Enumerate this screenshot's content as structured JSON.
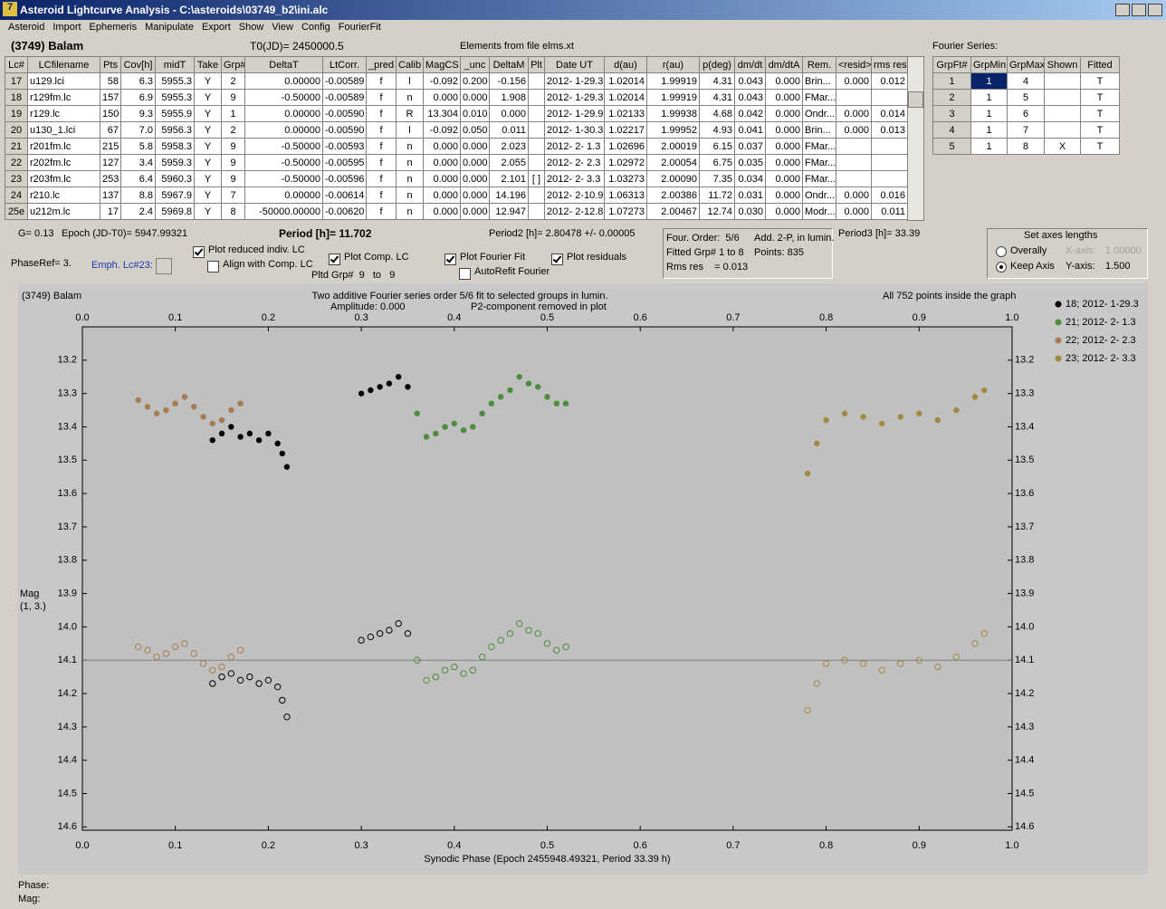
{
  "window": {
    "title": "Asteroid Lightcurve Analysis - C:\\asteroids\\03749_b2\\ini.alc",
    "menu": [
      "Asteroid",
      "Import",
      "Ephemeris",
      "Manipulate",
      "Export",
      "Show",
      "View",
      "Config",
      "FourierFit"
    ]
  },
  "header": {
    "object": "(3749) Balam",
    "t0": "T0(JD)= 2450000.5",
    "elements": "Elements from file elms.xt"
  },
  "table": {
    "columns": [
      "Lc#",
      "LCfilename",
      "Pts",
      "Cov[h]",
      "midT",
      "Take",
      "Grp#",
      "DeltaT",
      "LtCorr.",
      "_pred",
      "Calib",
      "MagCS",
      "_unc",
      "DeltaM",
      "Plt",
      "Date UT",
      "d(au)",
      "r(au)",
      "p(deg)",
      "dm/dt",
      "dm/dtA",
      "Rem.",
      "<resid>",
      "rms res"
    ],
    "rows": [
      [
        "17",
        "u129.lci",
        "58",
        "6.3",
        "5955.3",
        "Y",
        "2",
        "0.00000",
        "-0.00589",
        "f",
        "l",
        "-0.092",
        "0.200",
        "-0.156",
        null,
        "2012- 1-29.3",
        "1.02014",
        "1.99919",
        "4.31",
        "0.043",
        "0.000",
        "Brin...",
        "0.000",
        "0.012"
      ],
      [
        "18",
        "r129fm.lc",
        "157",
        "6.9",
        "5955.3",
        "Y",
        "9",
        "-0.50000",
        "-0.00589",
        "f",
        "n",
        "0.000",
        "0.000",
        "1.908",
        null,
        "2012- 1-29.3",
        "1.02014",
        "1.99919",
        "4.31",
        "0.043",
        "0.000",
        "FMar...",
        null,
        null
      ],
      [
        "19",
        "r129.lc",
        "150",
        "9.3",
        "5955.9",
        "Y",
        "1",
        "0.00000",
        "-0.00590",
        "f",
        "R",
        "13.304",
        "0.010",
        "0.000",
        null,
        "2012- 1-29.9",
        "1.02133",
        "1.99938",
        "4.68",
        "0.042",
        "0.000",
        "Ondr...",
        "0.000",
        "0.014"
      ],
      [
        "20",
        "u130_1.lci",
        "67",
        "7.0",
        "5956.3",
        "Y",
        "2",
        "0.00000",
        "-0.00590",
        "f",
        "l",
        "-0.092",
        "0.050",
        "0.011",
        null,
        "2012- 1-30.3",
        "1.02217",
        "1.99952",
        "4.93",
        "0.041",
        "0.000",
        "Brin...",
        "0.000",
        "0.013"
      ],
      [
        "21",
        "r201fm.lc",
        "215",
        "5.8",
        "5958.3",
        "Y",
        "9",
        "-0.50000",
        "-0.00593",
        "f",
        "n",
        "0.000",
        "0.000",
        "2.023",
        null,
        "2012- 2- 1.3",
        "1.02696",
        "2.00019",
        "6.15",
        "0.037",
        "0.000",
        "FMar...",
        null,
        null
      ],
      [
        "22",
        "r202fm.lc",
        "127",
        "3.4",
        "5959.3",
        "Y",
        "9",
        "-0.50000",
        "-0.00595",
        "f",
        "n",
        "0.000",
        "0.000",
        "2.055",
        null,
        "2012- 2- 2.3",
        "1.02972",
        "2.00054",
        "6.75",
        "0.035",
        "0.000",
        "FMar...",
        null,
        null
      ],
      [
        "23",
        "r203fm.lc",
        "253",
        "6.4",
        "5960.3",
        "Y",
        "9",
        "-0.50000",
        "-0.00596",
        "f",
        "n",
        "0.000",
        "0.000",
        "2.101",
        "[ ]",
        "2012- 2- 3.3",
        "1.03273",
        "2.00090",
        "7.35",
        "0.034",
        "0.000",
        "FMar...",
        null,
        null
      ],
      [
        "24",
        "r210.lc",
        "137",
        "8.8",
        "5967.9",
        "Y",
        "7",
        "0.00000",
        "-0.00614",
        "f",
        "n",
        "0.000",
        "0.000",
        "14.196",
        null,
        "2012- 2-10.9",
        "1.06313",
        "2.00386",
        "11.72",
        "0.031",
        "0.000",
        "Ondr...",
        "0.000",
        "0.016"
      ],
      [
        "25e",
        "u212m.lc",
        "17",
        "2.4",
        "5969.8",
        "Y",
        "8",
        "-50000.00000",
        "-0.00620",
        "f",
        "n",
        "0.000",
        "0.000",
        "12.947",
        null,
        "2012- 2-12.8",
        "1.07273",
        "2.00467",
        "12.74",
        "0.030",
        "0.000",
        "Modr...",
        "0.000",
        "0.011"
      ]
    ]
  },
  "fourier": {
    "label": "Fourier Series:",
    "columns": [
      "GrpFt#",
      "GrpMin",
      "GrpMax",
      "Shown",
      "Fitted"
    ],
    "rows": [
      [
        "1",
        "1",
        "4",
        null,
        "T"
      ],
      [
        "2",
        "1",
        "5",
        null,
        "T"
      ],
      [
        "3",
        "1",
        "6",
        null,
        "T"
      ],
      [
        "4",
        "1",
        "7",
        null,
        "T"
      ],
      [
        "5",
        "1",
        "8",
        "X",
        "T"
      ]
    ]
  },
  "info": {
    "g": "G= 0.13",
    "epoch": "Epoch (JD-T0)= 5947.99321",
    "period": "Period [h]= 11.702",
    "period2": "Period2 [h]= 2.80478 +/- 0.00005",
    "period3": "Period3 [h]= 33.39",
    "phase_ref": "PhaseRef= 3.",
    "emph": "Emph. Lc#23:"
  },
  "fit_box": {
    "order": "Four. Order:  5/6",
    "add": "Add. 2-P, in lumin.",
    "fitted": "Fitted Grp# 1 to 8",
    "points": "Points: 835",
    "rms": "Rms res    = 0.013"
  },
  "options": {
    "plot_reduced": {
      "label": "Plot reduced indiv. LC",
      "checked": true
    },
    "align": {
      "label": "Align with Comp. LC",
      "checked": false
    },
    "plot_comp": {
      "label": "Plot Comp. LC",
      "checked": true
    },
    "plot_fourier": {
      "label": "Plot Fourier Fit",
      "checked": true
    },
    "autorefit": {
      "label": "AutoRefit Fourier",
      "checked": false
    },
    "plot_residuals": {
      "label": "Plot residuals",
      "checked": true
    },
    "pltd": "Pltd Grp#  9   to   9"
  },
  "axes_box": {
    "title": "Set axes lengths",
    "overally": "Overally",
    "keep": "Keep Axis",
    "selected": "keep",
    "x_label": "X-axis:",
    "x_value": "1.00000",
    "y_label": "Y-axis:",
    "y_value": "1.500"
  },
  "chart_data": {
    "type": "scatter",
    "object": "(3749) Balam",
    "title": "Two additive Fourier series order 5/6 fit to selected groups in lumin.",
    "subtitle_left": "Amplitude: 0.000",
    "subtitle_right": "P2-component removed in plot",
    "note": "All 752 points inside the graph",
    "xlabel": "Synodic Phase (Epoch 2455948.49321, Period 33.39 h)",
    "ylabel": [
      "Mag",
      "(1, 3.)"
    ],
    "xlim": [
      0,
      1
    ],
    "xticks": [
      {
        "value": 0,
        "label": "0.0"
      },
      0.1,
      0.2,
      0.3,
      0.4,
      0.5,
      0.6,
      0.7,
      0.8,
      0.9,
      {
        "value": 1,
        "label": "1.0"
      }
    ],
    "ylim": [
      13.1,
      14.61
    ],
    "yticks": [
      13.2,
      13.3,
      13.4,
      13.5,
      13.6,
      13.7,
      13.8,
      13.9,
      {
        "value": 14,
        "label": "14.0"
      },
      14.1,
      14.2,
      14.3,
      14.4,
      14.5,
      14.6
    ],
    "invert_y": true,
    "hline": 14.1,
    "series": [
      {
        "name": "18; 2012- 1-29.3",
        "color": "#000000",
        "x": [
          0.14,
          0.15,
          0.16,
          0.17,
          0.18,
          0.19,
          0.2,
          0.21,
          0.215,
          0.22,
          0.3,
          0.31,
          0.32,
          0.33,
          0.34,
          0.35
        ],
        "values": [
          13.44,
          13.42,
          13.4,
          13.43,
          13.42,
          13.44,
          13.42,
          13.45,
          13.48,
          13.52,
          13.3,
          13.29,
          13.28,
          13.27,
          13.25,
          13.28
        ],
        "values_open": [
          14.17,
          14.15,
          14.14,
          14.16,
          14.15,
          14.17,
          14.16,
          14.18,
          14.22,
          14.27,
          14.04,
          14.03,
          14.02,
          14.01,
          13.99,
          14.02
        ]
      },
      {
        "name": "21; 2012- 2- 1.3",
        "color": "#4e8b3c",
        "x": [
          0.36,
          0.37,
          0.38,
          0.39,
          0.4,
          0.41,
          0.42,
          0.43,
          0.44,
          0.45,
          0.46,
          0.47,
          0.48,
          0.49,
          0.5,
          0.51,
          0.52
        ],
        "values": [
          13.36,
          13.43,
          13.42,
          13.4,
          13.39,
          13.41,
          13.4,
          13.36,
          13.33,
          13.31,
          13.29,
          13.25,
          13.27,
          13.28,
          13.31,
          13.33,
          13.33
        ],
        "values_open": [
          14.1,
          14.16,
          14.15,
          14.13,
          14.12,
          14.14,
          14.13,
          14.09,
          14.06,
          14.04,
          14.02,
          13.99,
          14.01,
          14.02,
          14.05,
          14.07,
          14.06
        ]
      },
      {
        "name": "22; 2012- 2- 2.3",
        "color": "#a67c52",
        "x": [
          0.06,
          0.07,
          0.08,
          0.09,
          0.1,
          0.11,
          0.12,
          0.13,
          0.14,
          0.15,
          0.16,
          0.17
        ],
        "values": [
          13.32,
          13.34,
          13.36,
          13.35,
          13.33,
          13.31,
          13.34,
          13.37,
          13.39,
          13.38,
          13.35,
          13.33
        ],
        "values_open": [
          14.06,
          14.07,
          14.09,
          14.08,
          14.06,
          14.05,
          14.08,
          14.11,
          14.13,
          14.12,
          14.09,
          14.07
        ]
      },
      {
        "name": "23; 2012- 2- 3.3",
        "color": "#a08a42",
        "x": [
          0.78,
          0.79,
          0.8,
          0.82,
          0.84,
          0.86,
          0.88,
          0.9,
          0.92,
          0.94,
          0.96,
          0.97
        ],
        "values": [
          13.54,
          13.45,
          13.38,
          13.36,
          13.37,
          13.39,
          13.37,
          13.36,
          13.38,
          13.35,
          13.31,
          13.29
        ],
        "values_open": [
          14.25,
          14.17,
          14.11,
          14.1,
          14.11,
          14.13,
          14.11,
          14.1,
          14.12,
          14.09,
          14.05,
          14.02
        ]
      }
    ]
  },
  "status": {
    "phase": "Phase:",
    "mag": "Mag:"
  }
}
